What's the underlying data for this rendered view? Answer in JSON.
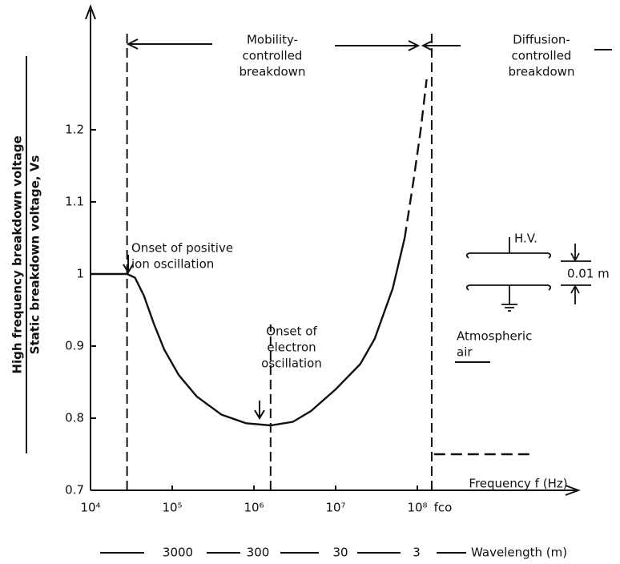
{
  "chart_data": {
    "type": "line",
    "ylabel": [
      "High frequency breakdown voltage",
      "Static breakdown voltage, Vs"
    ],
    "xlabel": "Frequency f (Hz)",
    "xscale": "log",
    "xlim": [
      10000,
      10000000000
    ],
    "ylim": [
      0.7,
      1.36
    ],
    "xticks": [
      {
        "value": 10000,
        "label": "10⁴"
      },
      {
        "value": 100000,
        "label": "10⁵"
      },
      {
        "value": 1000000,
        "label": "10⁶"
      },
      {
        "value": 10000000,
        "label": "10⁷"
      },
      {
        "value": 100000000,
        "label": "10⁸"
      },
      {
        "value": 150000000,
        "label": "fco"
      }
    ],
    "yticks": [
      0.7,
      0.8,
      0.9,
      1.0,
      1.1,
      1.2
    ],
    "series": [
      {
        "color": "#111",
        "dash": false,
        "x": [
          10000,
          28000,
          35000,
          45000,
          60000,
          80000,
          120000,
          200000,
          400000,
          800000,
          1600000,
          3000000,
          5000000,
          10000000,
          20000000,
          30000000,
          50000000,
          70000000
        ],
        "values": [
          1.0,
          1.0,
          0.995,
          0.97,
          0.93,
          0.895,
          0.86,
          0.83,
          0.805,
          0.793,
          0.79,
          0.795,
          0.81,
          0.84,
          0.875,
          0.91,
          0.98,
          1.05
        ]
      },
      {
        "color": "#111",
        "dash": true,
        "x": [
          70000000,
          90000000,
          110000000,
          130000000
        ],
        "values": [
          1.05,
          1.13,
          1.2,
          1.27
        ]
      },
      {
        "color": "#111",
        "dash": true,
        "x": [
          160000000,
          2400000000
        ],
        "values": [
          0.75,
          0.75
        ]
      }
    ],
    "markers": [
      {
        "x": 28000,
        "range": [
          0.7,
          1.34
        ]
      },
      {
        "x": 1600000,
        "range": [
          0.7,
          0.93
        ]
      },
      {
        "x": 150000000,
        "range": [
          0.7,
          1.34
        ]
      }
    ],
    "regions": [
      [
        "Mobility-",
        "controlled",
        "breakdown"
      ],
      [
        "Diffusion-",
        "controlled",
        "breakdown"
      ]
    ],
    "annotations": [
      [
        "Onset of positive",
        "ion oscillation"
      ],
      [
        "Onset of",
        "electron",
        "oscillation"
      ],
      [
        "Atmospheric",
        "air"
      ]
    ],
    "electrode": {
      "voltage": "H.V.",
      "gap": "0.01 m"
    },
    "wavelength": {
      "label": "Wavelength (m)",
      "values": [
        3000,
        300,
        30,
        3
      ]
    }
  }
}
